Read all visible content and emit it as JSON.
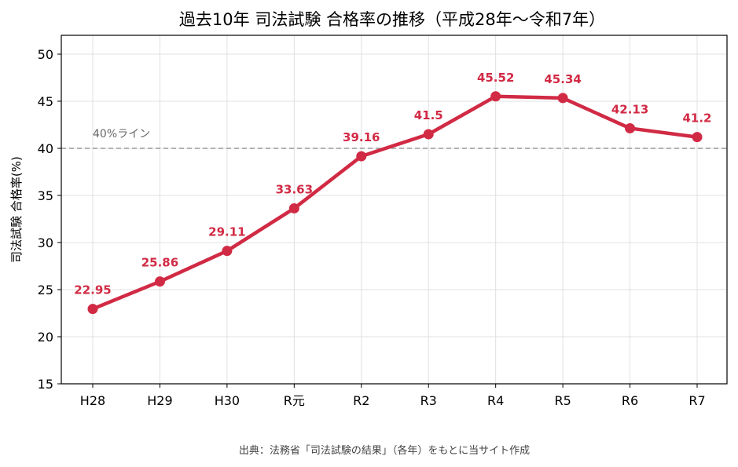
{
  "colors": {
    "series": "#d12a44",
    "reference_line": "#999999",
    "grid": "#e0e0e0",
    "axis": "#000000"
  },
  "chart_data": {
    "type": "line",
    "title": "過去10年 司法試験 合格率の推移（平成28年〜令和7年）",
    "xlabel": "",
    "ylabel": "司法試験 合格率(%)",
    "categories": [
      "H28",
      "H29",
      "H30",
      "R元",
      "R2",
      "R3",
      "R4",
      "R5",
      "R6",
      "R7"
    ],
    "series": [
      {
        "values": [
          22.95,
          25.86,
          29.11,
          33.63,
          39.16,
          41.5,
          45.52,
          45.34,
          42.13,
          41.2
        ]
      }
    ],
    "data_labels": [
      "22.95",
      "25.86",
      "29.11",
      "33.63",
      "39.16",
      "41.5",
      "45.52",
      "45.34",
      "42.13",
      "41.2"
    ],
    "ylim": [
      15,
      52
    ],
    "yticks": [
      15,
      20,
      25,
      30,
      35,
      40,
      45,
      50
    ],
    "grid": true,
    "reference_line": {
      "value": 40,
      "label": "40%ライン"
    },
    "source": "出典：法務省「司法試験の結果」（各年）をもとに当サイト作成"
  }
}
